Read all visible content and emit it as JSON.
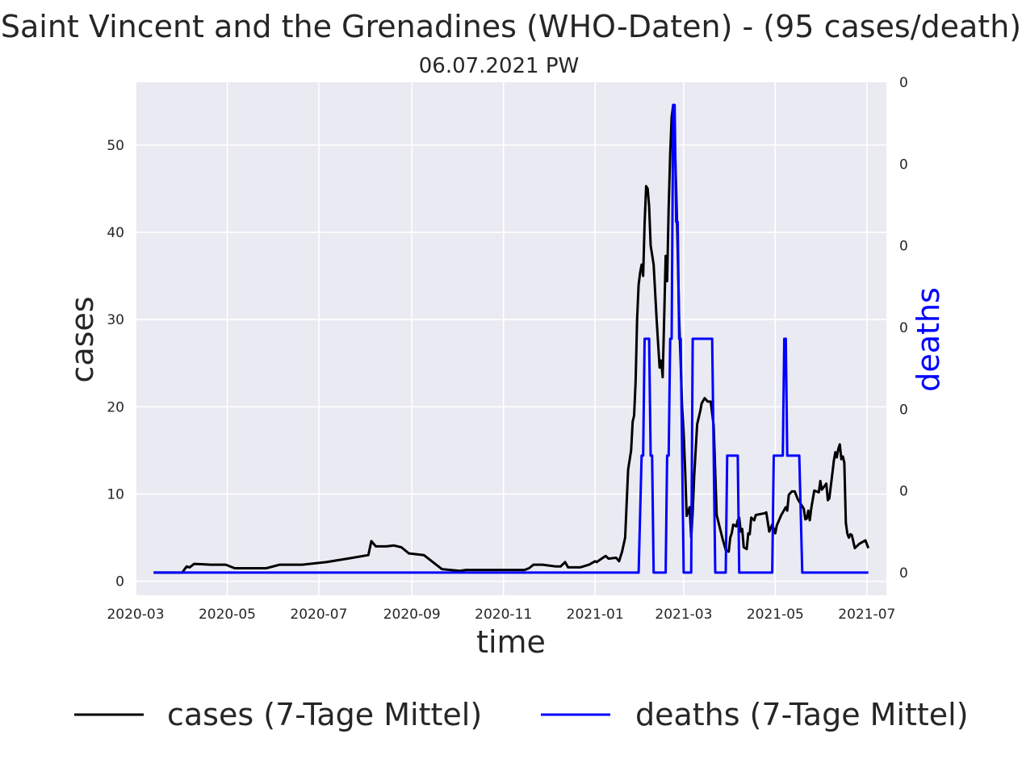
{
  "chart_data": {
    "type": "line",
    "title": "Saint Vincent and the Grenadines (WHO-Daten) - (95 cases/death)",
    "subtitle": "06.07.2021 PW",
    "xlabel": "time",
    "ylabel": "cases",
    "ylabel_right": "deaths",
    "x_ticks": [
      "2020-03",
      "2020-05",
      "2020-07",
      "2020-09",
      "2020-11",
      "2021-01",
      "2021-03",
      "2021-05",
      "2021-07"
    ],
    "y_ticks": [
      "0",
      "10",
      "20",
      "30",
      "40",
      "50"
    ],
    "y_right_ticks": [
      "0",
      "0",
      "0",
      "0",
      "0",
      "0",
      "0"
    ],
    "xlim": [
      "2020-03-01",
      "2021-07-14"
    ],
    "ylim": [
      -1.6,
      57.2
    ],
    "grid": true,
    "legend_position": "bottom",
    "colors": {
      "cases": "#000000",
      "deaths": "#0000ff",
      "background": "#eaeaf2",
      "grid": "#ffffff"
    },
    "series": [
      {
        "name": "cases (7-Tage Mittel)",
        "axis": "left",
        "points": [
          [
            "2020-03-13",
            1.0
          ],
          [
            "2020-04-01",
            1.0
          ],
          [
            "2020-04-04",
            1.7
          ],
          [
            "2020-04-06",
            1.6
          ],
          [
            "2020-04-09",
            2.0
          ],
          [
            "2020-04-20",
            1.9
          ],
          [
            "2020-04-30",
            1.9
          ],
          [
            "2020-05-06",
            1.5
          ],
          [
            "2020-05-27",
            1.5
          ],
          [
            "2020-06-05",
            1.9
          ],
          [
            "2020-06-20",
            1.9
          ],
          [
            "2020-07-06",
            2.2
          ],
          [
            "2020-07-20",
            2.6
          ],
          [
            "2020-08-03",
            3.0
          ],
          [
            "2020-08-05",
            4.6
          ],
          [
            "2020-08-08",
            4.0
          ],
          [
            "2020-08-15",
            4.0
          ],
          [
            "2020-08-20",
            4.1
          ],
          [
            "2020-08-25",
            3.9
          ],
          [
            "2020-08-30",
            3.2
          ],
          [
            "2020-09-09",
            3.0
          ],
          [
            "2020-09-15",
            2.2
          ],
          [
            "2020-09-21",
            1.4
          ],
          [
            "2020-10-03",
            1.2
          ],
          [
            "2020-10-07",
            1.3
          ],
          [
            "2020-10-20",
            1.3
          ],
          [
            "2020-11-08",
            1.3
          ],
          [
            "2020-11-15",
            1.3
          ],
          [
            "2020-11-18",
            1.5
          ],
          [
            "2020-11-21",
            1.9
          ],
          [
            "2020-11-27",
            1.9
          ],
          [
            "2020-12-06",
            1.7
          ],
          [
            "2020-12-09",
            1.7
          ],
          [
            "2020-12-12",
            2.2
          ],
          [
            "2020-12-14",
            1.6
          ],
          [
            "2020-12-22",
            1.6
          ],
          [
            "2020-12-28",
            1.9
          ],
          [
            "2021-01-01",
            2.3
          ],
          [
            "2021-01-02",
            2.2
          ],
          [
            "2021-01-08",
            2.9
          ],
          [
            "2021-01-10",
            2.6
          ],
          [
            "2021-01-15",
            2.7
          ],
          [
            "2021-01-17",
            2.3
          ],
          [
            "2021-01-19",
            3.4
          ],
          [
            "2021-01-21",
            5.0
          ],
          [
            "2021-01-23",
            12.8
          ],
          [
            "2021-01-25",
            15.0
          ],
          [
            "2021-01-26",
            18.3
          ],
          [
            "2021-01-27",
            19.0
          ],
          [
            "2021-01-28",
            23.0
          ],
          [
            "2021-01-29",
            30.0
          ],
          [
            "2021-01-30",
            34.0
          ],
          [
            "2021-01-31",
            35.4
          ],
          [
            "2021-02-01",
            36.3
          ],
          [
            "2021-02-02",
            35.0
          ],
          [
            "2021-02-03",
            41.0
          ],
          [
            "2021-02-04",
            45.3
          ],
          [
            "2021-02-05",
            45.0
          ],
          [
            "2021-02-06",
            43.0
          ],
          [
            "2021-02-07",
            38.5
          ],
          [
            "2021-02-09",
            36.3
          ],
          [
            "2021-02-11",
            30.0
          ],
          [
            "2021-02-13",
            24.5
          ],
          [
            "2021-02-14",
            25.3
          ],
          [
            "2021-02-15",
            23.4
          ],
          [
            "2021-02-16",
            30.0
          ],
          [
            "2021-02-17",
            37.3
          ],
          [
            "2021-02-18",
            34.4
          ],
          [
            "2021-02-19",
            42.8
          ],
          [
            "2021-02-20",
            49.0
          ],
          [
            "2021-02-21",
            53.2
          ],
          [
            "2021-02-22",
            54.6
          ],
          [
            "2021-02-23",
            51.0
          ],
          [
            "2021-02-24",
            45.0
          ],
          [
            "2021-02-25",
            38.0
          ],
          [
            "2021-02-26",
            30.0
          ],
          [
            "2021-02-27",
            25.0
          ],
          [
            "2021-02-28",
            20.0
          ],
          [
            "2021-03-01",
            17.0
          ],
          [
            "2021-03-02",
            12.5
          ],
          [
            "2021-03-03",
            7.5
          ],
          [
            "2021-03-05",
            8.5
          ],
          [
            "2021-03-06",
            5.0
          ],
          [
            "2021-03-07",
            8.0
          ],
          [
            "2021-03-08",
            12.0
          ],
          [
            "2021-03-10",
            18.0
          ],
          [
            "2021-03-12",
            19.5
          ],
          [
            "2021-03-13",
            20.4
          ],
          [
            "2021-03-15",
            21.0
          ],
          [
            "2021-03-17",
            20.6
          ],
          [
            "2021-03-19",
            20.6
          ],
          [
            "2021-03-21",
            17.8
          ],
          [
            "2021-03-23",
            7.6
          ],
          [
            "2021-03-25",
            6.2
          ],
          [
            "2021-03-27",
            4.8
          ],
          [
            "2021-03-29",
            3.6
          ],
          [
            "2021-03-31",
            3.4
          ],
          [
            "2021-04-01",
            5.0
          ],
          [
            "2021-04-02",
            5.5
          ],
          [
            "2021-04-03",
            6.5
          ],
          [
            "2021-04-05",
            6.3
          ],
          [
            "2021-04-06",
            7.0
          ],
          [
            "2021-04-07",
            7.3
          ],
          [
            "2021-04-08",
            5.7
          ],
          [
            "2021-04-09",
            6.0
          ],
          [
            "2021-04-10",
            3.9
          ],
          [
            "2021-04-12",
            3.7
          ],
          [
            "2021-04-13",
            5.5
          ],
          [
            "2021-04-14",
            5.4
          ],
          [
            "2021-04-15",
            7.3
          ],
          [
            "2021-04-17",
            7.0
          ],
          [
            "2021-04-18",
            7.6
          ],
          [
            "2021-04-24",
            7.8
          ],
          [
            "2021-04-25",
            7.9
          ],
          [
            "2021-04-27",
            5.7
          ],
          [
            "2021-04-29",
            6.5
          ],
          [
            "2021-05-01",
            5.5
          ],
          [
            "2021-05-02",
            6.4
          ],
          [
            "2021-05-05",
            7.6
          ],
          [
            "2021-05-08",
            8.5
          ],
          [
            "2021-05-09",
            8.1
          ],
          [
            "2021-05-10",
            9.9
          ],
          [
            "2021-05-12",
            10.3
          ],
          [
            "2021-05-14",
            10.3
          ],
          [
            "2021-05-16",
            9.4
          ],
          [
            "2021-05-19",
            8.6
          ],
          [
            "2021-05-20",
            8.3
          ],
          [
            "2021-05-21",
            7.1
          ],
          [
            "2021-05-22",
            7.2
          ],
          [
            "2021-05-23",
            8.1
          ],
          [
            "2021-05-24",
            7.0
          ],
          [
            "2021-05-25",
            8.4
          ],
          [
            "2021-05-27",
            10.4
          ],
          [
            "2021-05-30",
            10.2
          ],
          [
            "2021-05-31",
            11.5
          ],
          [
            "2021-06-01",
            10.5
          ],
          [
            "2021-06-04",
            11.2
          ],
          [
            "2021-06-05",
            9.3
          ],
          [
            "2021-06-06",
            9.5
          ],
          [
            "2021-06-08",
            12.3
          ],
          [
            "2021-06-09",
            13.8
          ],
          [
            "2021-06-10",
            14.8
          ],
          [
            "2021-06-11",
            14.2
          ],
          [
            "2021-06-12",
            15.2
          ],
          [
            "2021-06-13",
            15.7
          ],
          [
            "2021-06-14",
            14.0
          ],
          [
            "2021-06-15",
            14.3
          ],
          [
            "2021-06-16",
            13.6
          ],
          [
            "2021-06-17",
            6.7
          ],
          [
            "2021-06-18",
            5.5
          ],
          [
            "2021-06-19",
            5.0
          ],
          [
            "2021-06-20",
            5.4
          ],
          [
            "2021-06-21",
            5.3
          ],
          [
            "2021-06-23",
            3.8
          ],
          [
            "2021-06-26",
            4.3
          ],
          [
            "2021-06-30",
            4.7
          ],
          [
            "2021-07-02",
            3.8
          ]
        ]
      },
      {
        "name": "deaths (7-Tage Mittel)",
        "axis": "right",
        "points": [
          [
            "2020-03-13",
            1.0
          ],
          [
            "2021-01-30",
            1.0
          ],
          [
            "2021-02-01",
            14.4
          ],
          [
            "2021-02-02",
            14.4
          ],
          [
            "2021-02-03",
            27.8
          ],
          [
            "2021-02-06",
            27.8
          ],
          [
            "2021-02-07",
            14.4
          ],
          [
            "2021-02-08",
            14.4
          ],
          [
            "2021-02-09",
            1.0
          ],
          [
            "2021-02-17",
            1.0
          ],
          [
            "2021-02-18",
            14.4
          ],
          [
            "2021-02-19",
            14.4
          ],
          [
            "2021-02-20",
            27.8
          ],
          [
            "2021-02-21",
            27.8
          ],
          [
            "2021-02-22",
            54.6
          ],
          [
            "2021-02-23",
            54.6
          ],
          [
            "2021-02-24",
            41.2
          ],
          [
            "2021-02-25",
            41.2
          ],
          [
            "2021-02-26",
            27.8
          ],
          [
            "2021-02-27",
            27.8
          ],
          [
            "2021-02-28",
            14.4
          ],
          [
            "2021-03-01",
            1.0
          ],
          [
            "2021-03-06",
            1.0
          ],
          [
            "2021-03-07",
            27.8
          ],
          [
            "2021-03-20",
            27.8
          ],
          [
            "2021-03-21",
            14.4
          ],
          [
            "2021-03-22",
            1.0
          ],
          [
            "2021-03-29",
            1.0
          ],
          [
            "2021-03-30",
            14.4
          ],
          [
            "2021-04-06",
            14.4
          ],
          [
            "2021-04-07",
            1.0
          ],
          [
            "2021-04-29",
            1.0
          ],
          [
            "2021-04-30",
            14.4
          ],
          [
            "2021-05-06",
            14.4
          ],
          [
            "2021-05-07",
            27.8
          ],
          [
            "2021-05-08",
            27.8
          ],
          [
            "2021-05-09",
            14.4
          ],
          [
            "2021-05-16",
            14.4
          ],
          [
            "2021-05-17",
            14.4
          ],
          [
            "2021-05-19",
            1.0
          ],
          [
            "2021-07-02",
            1.0
          ]
        ]
      }
    ]
  }
}
